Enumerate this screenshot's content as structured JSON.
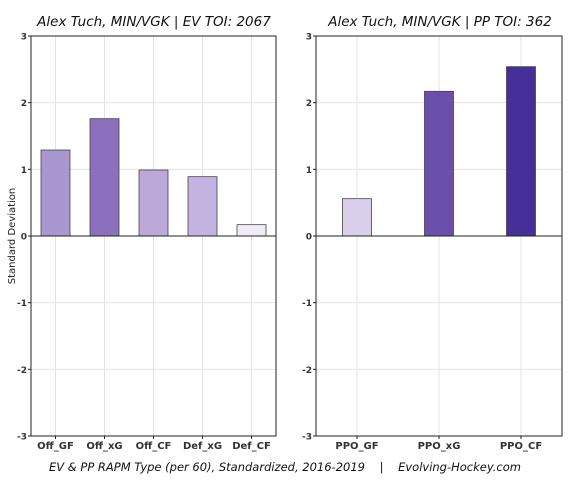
{
  "footer": "EV & PP RAPM Type (per 60), Standardized, 2016-2019    |    Evolving-Hockey.com",
  "chart_data": [
    {
      "type": "bar",
      "title": "Alex Tuch, MIN/VGK  |  EV TOI: 2067",
      "ylabel": "Standard Deviation",
      "xlabel": "",
      "ylim": [
        -3,
        3
      ],
      "yticks": [
        -3,
        -2,
        -1,
        0,
        1,
        2,
        3
      ],
      "grid": true,
      "categories": [
        "Off_GF",
        "Off_xG",
        "Off_CF",
        "Def_xG",
        "Def_CF"
      ],
      "values": [
        1.29,
        1.76,
        0.99,
        0.89,
        0.17
      ],
      "colors": [
        "#a997cf",
        "#8a70bd",
        "#bca9da",
        "#c3b3e0",
        "#eeebf5"
      ]
    },
    {
      "type": "bar",
      "title": "Alex Tuch, MIN/VGK  |  PP TOI: 362",
      "ylabel": "",
      "xlabel": "",
      "ylim": [
        -3,
        3
      ],
      "yticks": [
        -3,
        -2,
        -1,
        0,
        1,
        2,
        3
      ],
      "grid": true,
      "categories": [
        "PPO_GF",
        "PPO_xG",
        "PPO_CF"
      ],
      "values": [
        0.56,
        2.17,
        2.54
      ],
      "colors": [
        "#d9cfea",
        "#6a4fad",
        "#472f99"
      ]
    }
  ]
}
